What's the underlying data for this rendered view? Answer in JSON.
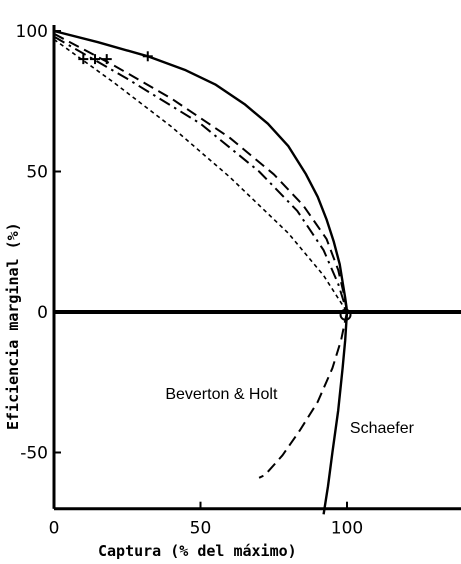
{
  "chart_data": {
    "type": "line",
    "title": "",
    "xlabel": "Captura (% del máximo)",
    "ylabel": "Eficiencia marginal (%)",
    "xlim": [
      0,
      140
    ],
    "ylim": [
      -70,
      100
    ],
    "xticks": [
      0,
      50,
      100
    ],
    "yticks": [
      -50,
      0,
      50,
      100
    ],
    "xtick_labels": [
      "0",
      "50",
      "100"
    ],
    "ytick_labels": [
      "-50",
      "0",
      "50",
      "100"
    ],
    "grid": false,
    "legend": "none",
    "annotations": [
      {
        "text": "Beverton & Holt",
        "x": 38,
        "y": -31
      },
      {
        "text": "Schaefer",
        "x": 101,
        "y": -43
      }
    ],
    "series": [
      {
        "style": "solid",
        "x": [
          0,
          15,
          32,
          45,
          55,
          65,
          73,
          80,
          86,
          90,
          93,
          95.5,
          97.5,
          98.6,
          99.4,
          99.8,
          100
        ],
        "y": [
          100,
          96,
          91,
          86,
          81,
          74,
          67,
          59,
          49,
          41,
          33,
          25,
          17,
          10,
          5,
          2,
          0
        ]
      },
      {
        "style": "solid",
        "x": [
          100,
          99.4,
          98.5,
          97,
          95,
          93.5,
          92
        ],
        "y": [
          0,
          -10,
          -20,
          -35,
          -50,
          -62,
          -72
        ]
      },
      {
        "style": "dashed",
        "x": [
          0,
          20,
          40,
          60,
          75,
          85,
          93,
          97,
          99,
          100
        ],
        "y": [
          99,
          88,
          76,
          62,
          49,
          38,
          26,
          15,
          6,
          0
        ]
      },
      {
        "style": "dashed",
        "x": [
          100,
          98,
          95,
          90,
          84,
          78,
          72,
          70
        ],
        "y": [
          0,
          -10,
          -20,
          -32,
          -42,
          -51,
          -58,
          -59
        ]
      },
      {
        "style": "dash-dot",
        "x": [
          0,
          25,
          50,
          70,
          83,
          92,
          97,
          100
        ],
        "y": [
          98,
          83,
          67,
          50,
          36,
          22,
          10,
          0
        ]
      },
      {
        "style": "dotted",
        "x": [
          0,
          20,
          40,
          60,
          80,
          92,
          100
        ],
        "y": [
          97,
          82,
          66,
          48,
          28,
          13,
          0
        ]
      }
    ],
    "markers": [
      {
        "symbol": "+",
        "x": 10,
        "y": 90
      },
      {
        "symbol": "+",
        "x": 14,
        "y": 90
      },
      {
        "symbol": "+",
        "x": 18,
        "y": 90
      },
      {
        "symbol": "+",
        "x": 32,
        "y": 91
      },
      {
        "symbol": "o",
        "x": 99.5,
        "y": -1
      }
    ]
  }
}
